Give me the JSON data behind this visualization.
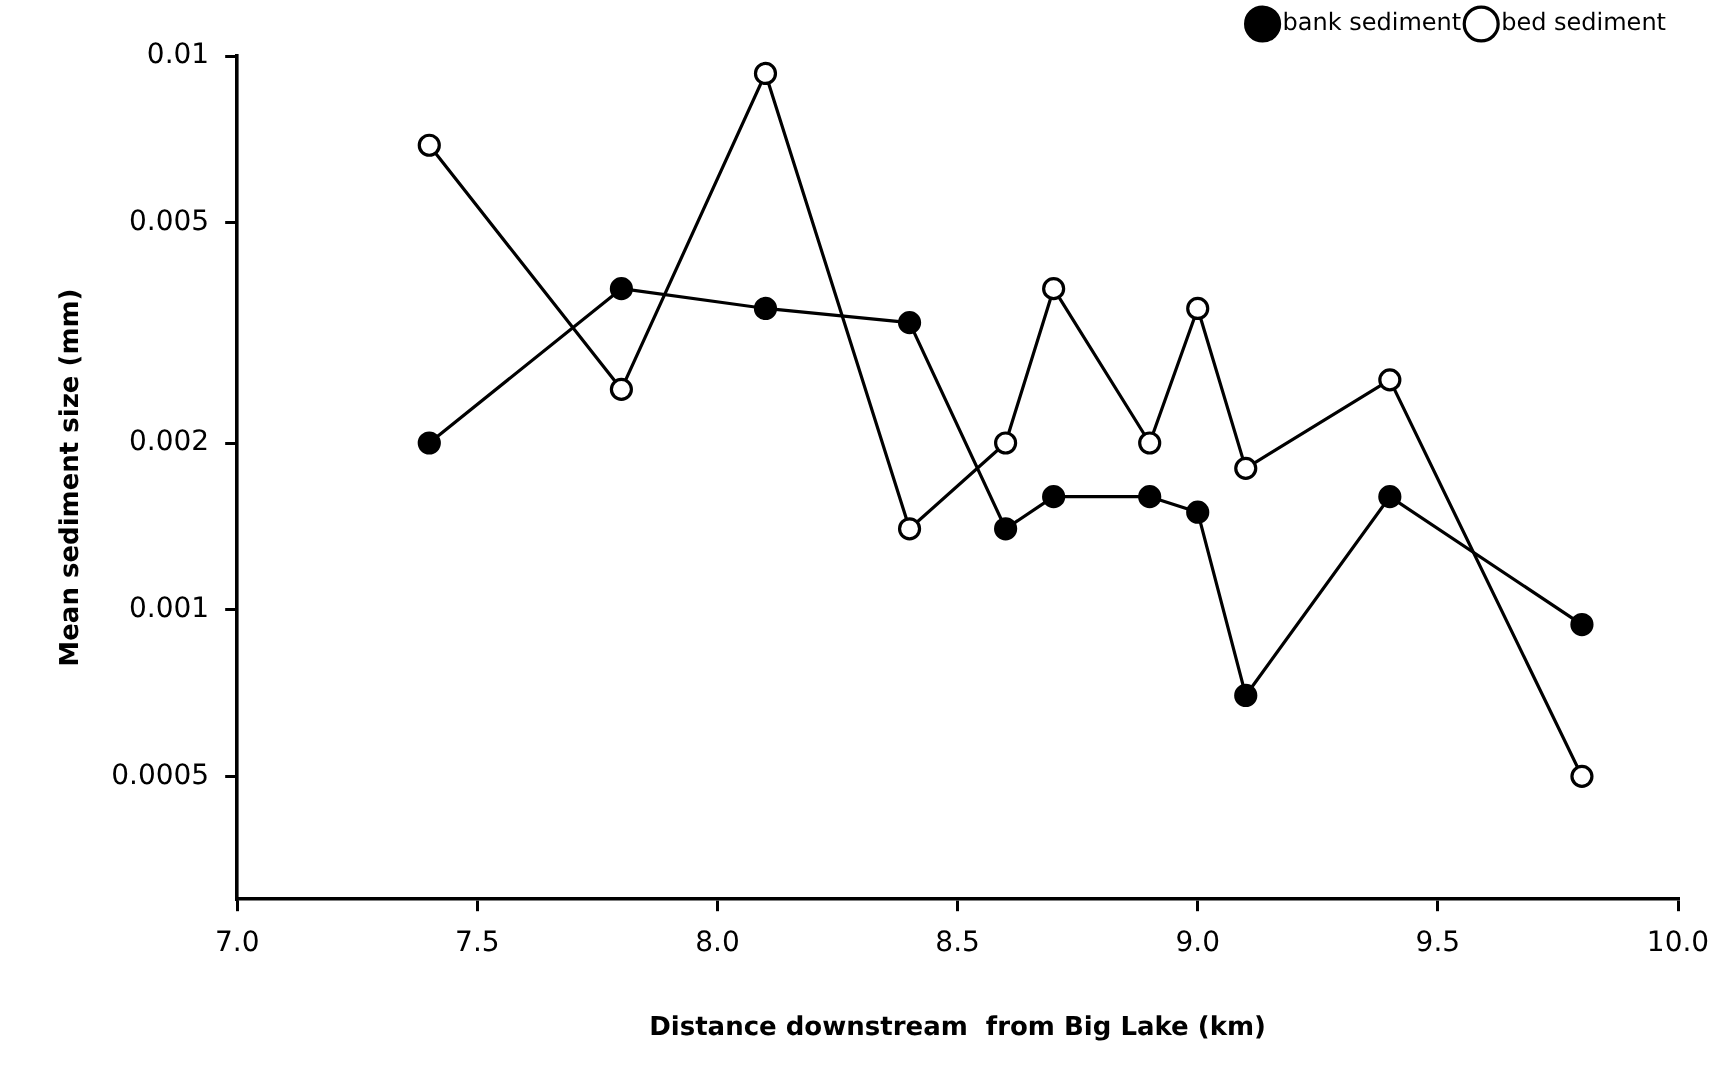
{
  "chart_data": {
    "type": "line",
    "xlabel": "Distance downstream  from Big Lake (km)",
    "ylabel": "Mean sediment size (mm)",
    "x": [
      7.4,
      7.8,
      8.1,
      8.4,
      8.6,
      8.7,
      8.9,
      9.0,
      9.1,
      9.4,
      9.8
    ],
    "series": [
      {
        "name": "bank sediment",
        "color": "#000000",
        "values": [
          0.002,
          0.0038,
          0.0035,
          0.0033,
          0.0014,
          0.0016,
          0.0016,
          0.0015,
          0.0007,
          0.0016,
          0.00094
        ]
      },
      {
        "name": "bed sediment",
        "color": "#000000",
        "values": [
          0.0069,
          0.0025,
          0.0093,
          0.0014,
          0.002,
          0.0038,
          0.002,
          0.0035,
          0.0018,
          0.0026,
          0.0005
        ]
      }
    ],
    "log": "y",
    "xlim": [
      7.0,
      10.0
    ],
    "xticks": [
      {
        "value": 7.0,
        "label": "7.0"
      },
      7.5,
      {
        "value": 8.0,
        "label": "8.0"
      },
      8.5,
      {
        "value": 9.0,
        "label": "9.0"
      },
      9.5,
      {
        "value": 10.0,
        "label": "10.0"
      }
    ],
    "ylim": [
      0.0003,
      0.01
    ],
    "yticks": [
      0.0005,
      0.001,
      0.002,
      0.005,
      0.01
    ],
    "grid": false,
    "legend": "top right",
    "marker": "circle",
    "line_style": "solid"
  }
}
